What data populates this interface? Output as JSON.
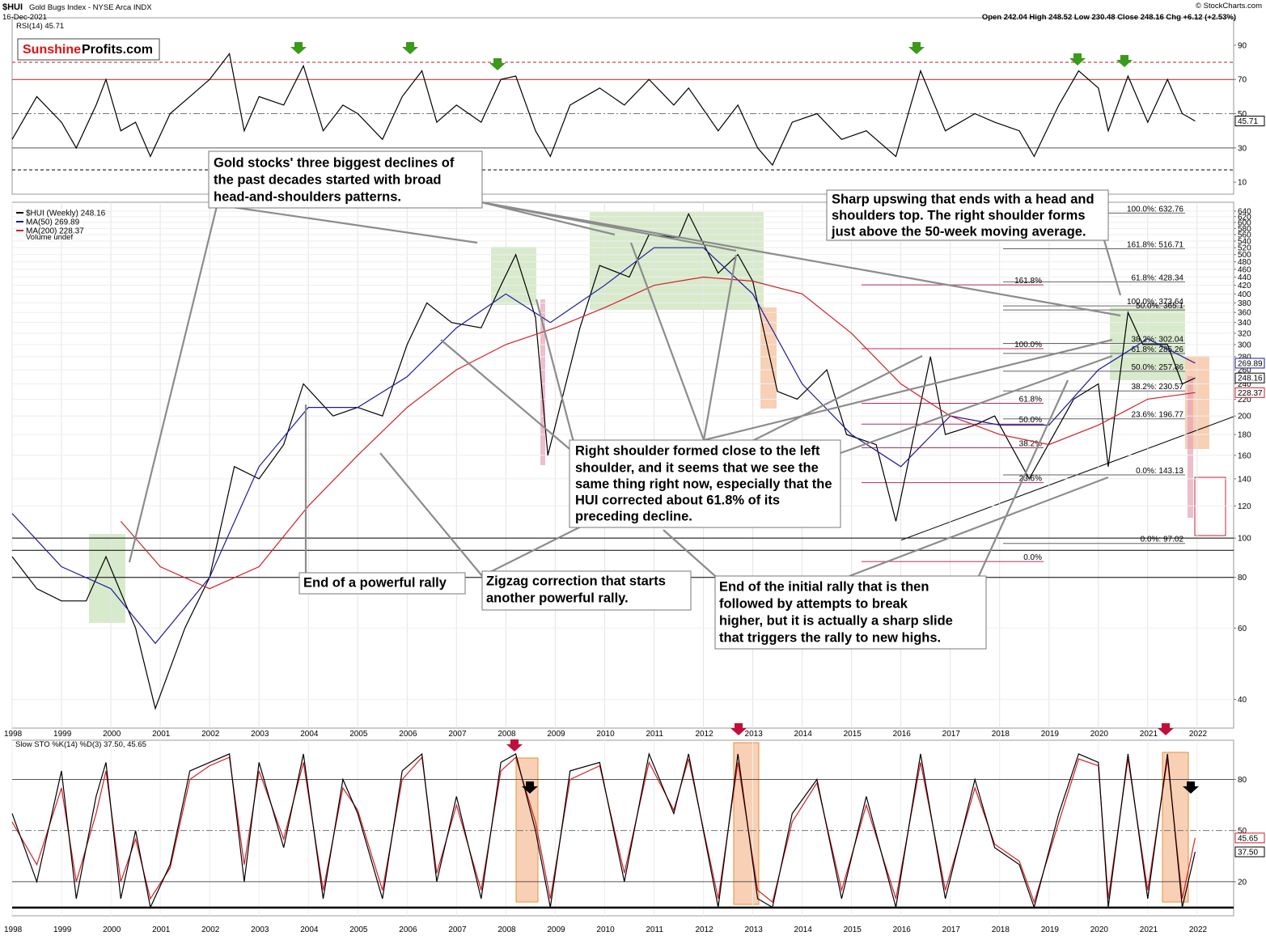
{
  "chart_data": [
    {
      "type": "line",
      "title": "RSI(14) 45.71",
      "logo_left": "Sunshine",
      "logo_right": "Profits.com",
      "xlim": [
        1998,
        2022.74
      ],
      "ylim": [
        3,
        106
      ],
      "yticks": [
        10,
        30,
        50,
        70,
        90
      ],
      "hlines": [
        {
          "value": 80,
          "color": "#b22222",
          "dash": "4 3"
        },
        {
          "value": 70,
          "color": "#b22222"
        },
        {
          "value": 50,
          "color": "#777777",
          "dash": "8 3 2 3"
        },
        {
          "value": 30,
          "color": "#555555"
        },
        {
          "value": 17.2,
          "color": "#000000",
          "dash": "4 3"
        }
      ],
      "x": [
        1998,
        1998.5,
        1999,
        1999.3,
        1999.7,
        1999.9,
        2000.2,
        2000.5,
        2000.8,
        2001.2,
        2001.6,
        2002.0,
        2002.4,
        2002.7,
        2003.0,
        2003.5,
        2003.9,
        2004.3,
        2004.7,
        2005.0,
        2005.5,
        2005.9,
        2006.3,
        2006.6,
        2007.0,
        2007.5,
        2007.9,
        2008.2,
        2008.6,
        2008.9,
        2009.3,
        2009.9,
        2010.4,
        2010.9,
        2011.4,
        2011.7,
        2012.3,
        2012.7,
        2013.1,
        2013.4,
        2013.8,
        2014.3,
        2014.8,
        2015.3,
        2015.9,
        2016.4,
        2016.9,
        2017.5,
        2017.9,
        2018.4,
        2018.7,
        2019.2,
        2019.6,
        2020.0,
        2020.2,
        2020.6,
        2021.0,
        2021.4,
        2021.7,
        2021.96
      ],
      "series": [
        {
          "color": "#000000",
          "last_label": "45.71",
          "values": [
            35,
            60,
            45,
            30,
            55,
            70,
            40,
            45,
            25,
            50,
            60,
            70,
            85,
            40,
            60,
            55,
            78,
            40,
            55,
            50,
            35,
            60,
            75,
            45,
            55,
            45,
            70,
            72,
            40,
            25,
            55,
            65,
            55,
            70,
            55,
            65,
            40,
            55,
            30,
            20,
            45,
            50,
            35,
            40,
            25,
            75,
            40,
            50,
            45,
            40,
            25,
            55,
            75,
            65,
            40,
            72,
            45,
            70,
            50,
            45.71
          ]
        }
      ]
    },
    {
      "type": "line",
      "title": "$HUI",
      "subtitle": "Gold Bugs Index - NYSE Arca INDX",
      "date": "16-Dec-2021",
      "quote": "Open 242.04 High 248.52 Low 230.48 Close 248.16 Chg +6.12 (+2.53%)",
      "source": "© StockCharts.com",
      "log_scale": true,
      "grid": true,
      "xlim": [
        1998,
        2022.74
      ],
      "ylim": [
        34,
        673
      ],
      "xticks": [
        1998,
        1999,
        2000,
        2001,
        2002,
        2003,
        2004,
        2005,
        2006,
        2007,
        2008,
        2009,
        2010,
        2011,
        2012,
        2013,
        2014,
        2015,
        2016,
        2017,
        2018,
        2019,
        2020,
        2021,
        2022
      ],
      "yticks": [
        40,
        60,
        80,
        100,
        120,
        140,
        160,
        180,
        200,
        220,
        240,
        260,
        280,
        300,
        320,
        340,
        360,
        380,
        400,
        420,
        440,
        460,
        480,
        500,
        520,
        540,
        560,
        580,
        600,
        620,
        640
      ],
      "hlines": [
        {
          "value": 100,
          "color": "#000000"
        },
        {
          "value": 93.3,
          "color": "#000000"
        },
        {
          "value": 80,
          "color": "#000000"
        }
      ],
      "series": [
        {
          "name": "$HUI (Weekly) 248.16",
          "color": "#000000",
          "last_label": "248.16",
          "x": [
            1998,
            1998.5,
            1999,
            1999.5,
            1999.9,
            2000.5,
            2000.9,
            2001.5,
            2002,
            2002.5,
            2003,
            2003.5,
            2003.9,
            2004.5,
            2005,
            2005.5,
            2006,
            2006.4,
            2006.9,
            2007.5,
            2007.9,
            2008.2,
            2008.6,
            2008.85,
            2009.5,
            2009.9,
            2010.5,
            2010.9,
            2011.5,
            2011.7,
            2012.3,
            2012.7,
            2013,
            2013.5,
            2013.9,
            2014.5,
            2014.9,
            2015.5,
            2015.9,
            2016.6,
            2016.9,
            2017.5,
            2017.9,
            2018.6,
            2019.5,
            2020,
            2020.2,
            2020.6,
            2020.9,
            2021.4,
            2021.7,
            2021.96
          ],
          "values": [
            90,
            75,
            70,
            70,
            90,
            60,
            38,
            60,
            80,
            150,
            140,
            170,
            240,
            200,
            210,
            200,
            300,
            380,
            340,
            330,
            420,
            500,
            350,
            160,
            330,
            470,
            440,
            560,
            550,
            630,
            450,
            500,
            430,
            230,
            220,
            260,
            180,
            170,
            110,
            280,
            180,
            190,
            200,
            140,
            220,
            240,
            150,
            360,
            300,
            300,
            240,
            248.16
          ]
        },
        {
          "name": "MA(50) 269.89",
          "color": "#1a1a9c",
          "last_label": "269.89",
          "x": [
            1998,
            1999,
            2000,
            2000.9,
            2002,
            2003,
            2004,
            2005,
            2006,
            2007,
            2008,
            2008.9,
            2010,
            2011,
            2012,
            2013,
            2014,
            2015,
            2016,
            2017,
            2018,
            2019,
            2020,
            2021,
            2021.96
          ],
          "values": [
            115,
            85,
            75,
            55,
            80,
            150,
            210,
            210,
            250,
            330,
            400,
            340,
            420,
            520,
            520,
            400,
            240,
            180,
            150,
            200,
            190,
            190,
            260,
            310,
            269.89
          ]
        },
        {
          "name": "MA(200) 228.37",
          "color": "#d0202a",
          "last_label": "228.37",
          "x": [
            2000.2,
            2001,
            2002,
            2003,
            2004,
            2005,
            2006,
            2007,
            2008,
            2009,
            2010,
            2011,
            2012,
            2013,
            2014,
            2015,
            2016,
            2017,
            2018,
            2019,
            2020,
            2021,
            2021.96
          ],
          "values": [
            110,
            85,
            75,
            85,
            120,
            160,
            210,
            260,
            300,
            330,
            370,
            420,
            440,
            430,
            400,
            320,
            240,
            200,
            180,
            170,
            190,
            220,
            228.37
          ]
        }
      ],
      "legend_extra": "Volume undef",
      "fib_right": [
        {
          "value": 632.76,
          "label": "100.0%: 632.76"
        },
        {
          "value": 516.71,
          "label": "161.8%: 516.71"
        },
        {
          "value": 428.34,
          "label": "61.8%: 428.34"
        },
        {
          "value": 373.64,
          "label": "100.0%: 373.64"
        },
        {
          "value": 365.1,
          "label": "50.0%: 365.1"
        },
        {
          "value": 302.04,
          "label": "38.2%: 302.04"
        },
        {
          "value": 285.26,
          "label": "61.8%: 285.26"
        },
        {
          "value": 257.86,
          "label": "50.0%: 257.86"
        },
        {
          "value": 230.57,
          "label": "38.2%: 230.57"
        },
        {
          "value": 196.77,
          "label": "23.6%: 196.77"
        },
        {
          "value": 143.13,
          "label": "0.0%: 143.13"
        },
        {
          "value": 97.02,
          "label": "0.0%: 97.02"
        }
      ],
      "fib_left": [
        {
          "value": 421,
          "label": "161.8%"
        },
        {
          "value": 293,
          "label": "100.0%"
        },
        {
          "value": 215,
          "label": "61.8%"
        },
        {
          "value": 191,
          "label": "50.0%"
        },
        {
          "value": 167,
          "label": "38.2%"
        },
        {
          "value": 137,
          "label": "23.6%"
        },
        {
          "value": 87.5,
          "label": "0.0%"
        }
      ],
      "annotations": [
        {
          "color": "#5b9a3a",
          "lines": [
            "Gold stocks' three biggest declines of",
            "the past decades started with broad",
            "head-and-shoulders patterns."
          ]
        },
        {
          "color": "#000000",
          "lines": [
            "Sharp upswing that ends with a head and",
            "shoulders top. The right shoulder forms",
            "just above the 50-week moving average."
          ]
        },
        {
          "color": "#c0203a",
          "lines": [
            "Right shoulder formed close to the left",
            "shoulder, and it seems that we see the",
            "same thing right now, especially that the",
            "HUI corrected about 61.8% of its",
            "preceding decline."
          ]
        },
        {
          "color": "#000000",
          "lines": [
            "End of a powerful rally"
          ]
        },
        {
          "color": "#000000",
          "lines": [
            "Zigzag correction that starts",
            "another powerful rally."
          ]
        },
        {
          "color": "#000000",
          "lines": [
            "End of the initial rally that is then",
            "followed by attempts to break",
            "higher, but it is actually a sharp slide",
            "that triggers the rally to new highs."
          ]
        }
      ]
    },
    {
      "type": "line",
      "title": "Slow STO %K(14) %D(3) 37.50, 45.65",
      "xlim": [
        1998,
        2022.74
      ],
      "ylim": [
        0,
        103
      ],
      "yticks": [
        20,
        50,
        80
      ],
      "xticks": [
        1998,
        1999,
        2000,
        2001,
        2002,
        2003,
        2004,
        2005,
        2006,
        2007,
        2008,
        2009,
        2010,
        2011,
        2012,
        2013,
        2014,
        2015,
        2016,
        2017,
        2018,
        2019,
        2020,
        2021,
        2022
      ],
      "hlines": [
        {
          "value": 80,
          "color": "#555555"
        },
        {
          "value": 50,
          "color": "#777777",
          "dash": "8 3 2 3"
        },
        {
          "value": 20,
          "color": "#555555"
        },
        {
          "value": 4.8,
          "color": "#000000",
          "width": 2.5
        }
      ],
      "x": [
        1998,
        1998.5,
        1999,
        1999.3,
        1999.7,
        1999.9,
        2000.2,
        2000.5,
        2000.8,
        2001.2,
        2001.6,
        2002.0,
        2002.4,
        2002.7,
        2003.0,
        2003.5,
        2003.9,
        2004.3,
        2004.7,
        2005.0,
        2005.5,
        2005.9,
        2006.3,
        2006.6,
        2007.0,
        2007.5,
        2007.9,
        2008.2,
        2008.6,
        2008.9,
        2009.3,
        2009.9,
        2010.4,
        2010.9,
        2011.4,
        2011.7,
        2012.3,
        2012.7,
        2013.1,
        2013.4,
        2013.8,
        2014.3,
        2014.8,
        2015.3,
        2015.9,
        2016.4,
        2016.9,
        2017.5,
        2017.9,
        2018.4,
        2018.7,
        2019.2,
        2019.6,
        2020.0,
        2020.2,
        2020.6,
        2021.0,
        2021.4,
        2021.7,
        2021.96
      ],
      "series": [
        {
          "color": "#d0202a",
          "last_label": "45.65",
          "values": [
            55,
            30,
            75,
            20,
            60,
            85,
            20,
            45,
            10,
            28,
            80,
            88,
            93,
            30,
            85,
            45,
            90,
            15,
            75,
            62,
            15,
            80,
            93,
            25,
            65,
            15,
            85,
            93,
            55,
            10,
            80,
            88,
            25,
            90,
            62,
            92,
            10,
            90,
            15,
            8,
            55,
            78,
            15,
            65,
            10,
            90,
            15,
            75,
            42,
            32,
            8,
            55,
            92,
            88,
            10,
            92,
            15,
            92,
            10,
            45.65
          ]
        },
        {
          "color": "#000000",
          "last_label": "37.50",
          "values": [
            60,
            20,
            85,
            10,
            70,
            90,
            10,
            50,
            5,
            30,
            85,
            90,
            95,
            20,
            90,
            40,
            95,
            10,
            80,
            60,
            10,
            85,
            95,
            20,
            70,
            10,
            90,
            95,
            50,
            5,
            85,
            90,
            20,
            95,
            60,
            95,
            5,
            95,
            10,
            5,
            60,
            80,
            10,
            70,
            5,
            95,
            10,
            80,
            40,
            30,
            5,
            60,
            95,
            90,
            5,
            95,
            10,
            95,
            5,
            37.5
          ]
        }
      ]
    }
  ]
}
